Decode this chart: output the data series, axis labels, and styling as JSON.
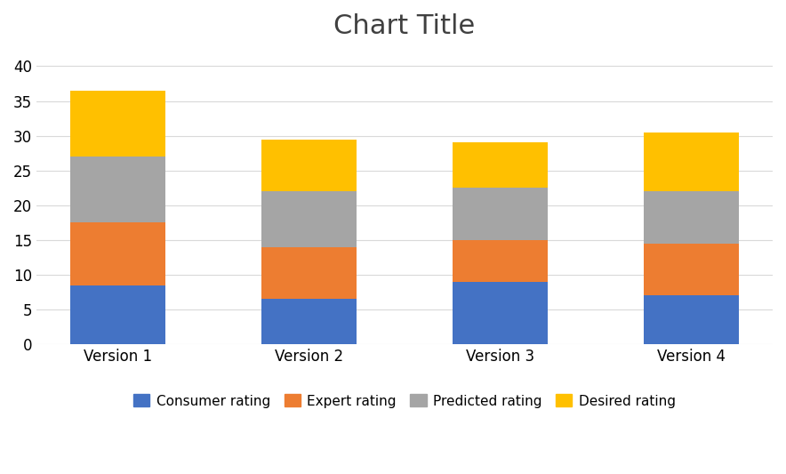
{
  "categories": [
    "Version 1",
    "Version 2",
    "Version 3",
    "Version 4"
  ],
  "series": {
    "Consumer rating": [
      8.5,
      6.5,
      9.0,
      7.0
    ],
    "Expert rating": [
      9.0,
      7.5,
      6.0,
      7.5
    ],
    "Predicted rating": [
      9.5,
      8.0,
      7.5,
      7.5
    ],
    "Desired rating": [
      9.5,
      7.5,
      6.5,
      8.5
    ]
  },
  "colors": {
    "Consumer rating": "#4472C4",
    "Expert rating": "#ED7D31",
    "Predicted rating": "#A5A5A5",
    "Desired rating": "#FFC000"
  },
  "title": "Chart Title",
  "title_fontsize": 22,
  "ylim": [
    0,
    42
  ],
  "yticks": [
    0,
    5,
    10,
    15,
    20,
    25,
    30,
    35,
    40
  ],
  "background_color": "#FFFFFF",
  "plot_bg_color": "#FFFFFF",
  "grid_color": "#D9D9D9",
  "bar_width": 0.5,
  "legend_fontsize": 11,
  "tick_fontsize": 12
}
